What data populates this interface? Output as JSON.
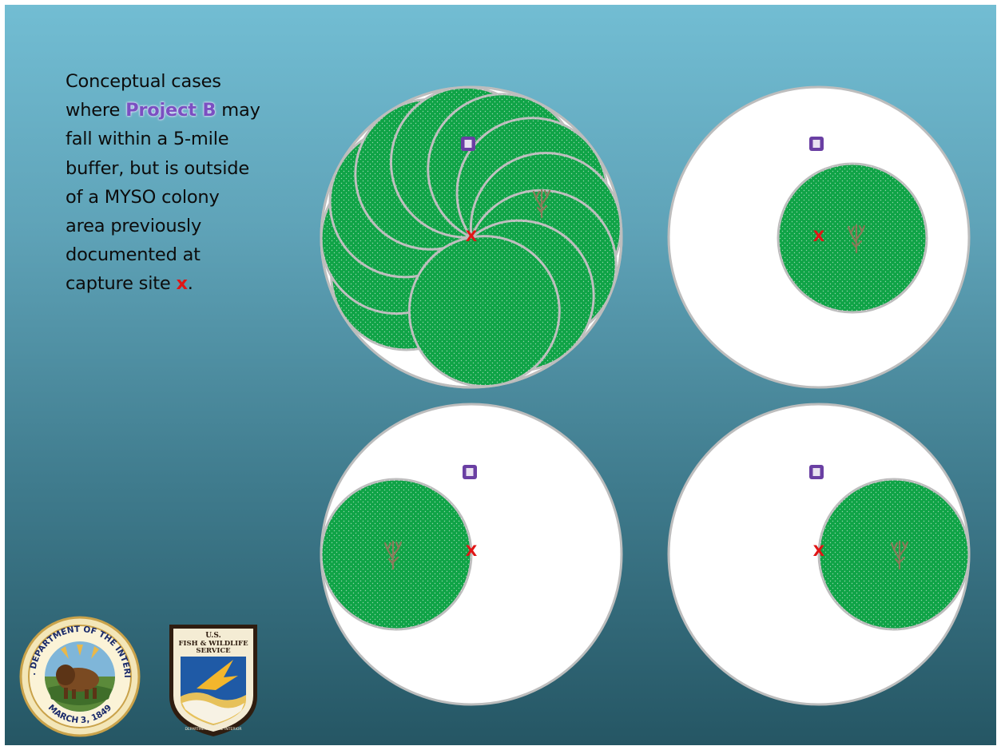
{
  "caption": {
    "line1": "Conceptual cases",
    "line2_pre": "where ",
    "line2_highlight": "Project B",
    "line2_post": " may",
    "line3": "fall within a 5-mile",
    "line4": "buffer, but is outside",
    "line5": "of a MYSO colony",
    "line6": "area previously",
    "line7": "documented at",
    "line8_pre": "capture site ",
    "line8_mark": "x",
    "line8_post": "."
  },
  "marker_glyph": "X",
  "logos": {
    "doi": {
      "top_text": "U.S. DEPARTMENT OF THE INTERIOR",
      "bottom_text": "MARCH 3, 1849"
    },
    "fws": {
      "line1": "U.S.",
      "line2": "FISH & WILDLIFE",
      "line3": "SERVICE",
      "bottom_text": "DEPARTMENT OF THE INTERIOR"
    }
  },
  "colors": {
    "green_zone": "#0fa346",
    "buffer_fill": "#ffffff",
    "outline": "#bdbdbd",
    "project_marker": "#6a3fa3",
    "capture_marker": "#e01515",
    "tree": "#8a7a5a"
  }
}
